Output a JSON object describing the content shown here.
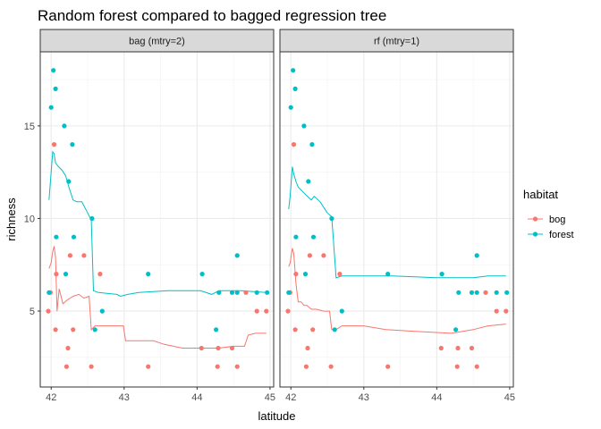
{
  "chart_data": {
    "type": "scatter",
    "title": "Random forest compared to bagged regression tree",
    "xlabel": "latitude",
    "ylabel": "richness",
    "xlim": [
      41.85,
      45.05
    ],
    "ylim": [
      0.9,
      19.0
    ],
    "x_ticks": [
      42,
      43,
      44,
      45
    ],
    "y_ticks": [
      5,
      10,
      15
    ],
    "grid": true,
    "facets": [
      "bag (mtry=2)",
      "rf (mtry=1)"
    ],
    "legend": {
      "title": "habitat",
      "position": "right",
      "entries": [
        {
          "label": "bog",
          "color": "#F8766D"
        },
        {
          "label": "forest",
          "color": "#00BFC4"
        }
      ]
    },
    "series": [
      {
        "name": "bog",
        "color": "#F8766D",
        "points": [
          [
            41.96,
            5
          ],
          [
            41.99,
            6
          ],
          [
            42.04,
            14
          ],
          [
            42.06,
            4
          ],
          [
            42.07,
            7
          ],
          [
            42.21,
            2
          ],
          [
            42.23,
            3
          ],
          [
            42.26,
            8
          ],
          [
            42.3,
            4
          ],
          [
            42.45,
            8
          ],
          [
            42.55,
            2
          ],
          [
            42.67,
            7
          ],
          [
            43.33,
            2
          ],
          [
            44.06,
            3
          ],
          [
            44.28,
            2
          ],
          [
            44.29,
            3
          ],
          [
            44.48,
            3
          ],
          [
            44.55,
            2
          ],
          [
            44.67,
            6
          ],
          [
            44.82,
            5
          ],
          [
            44.95,
            5
          ]
        ],
        "fit": {
          "bag (mtry=2)": [
            [
              41.97,
              7.3
            ],
            [
              42.0,
              7.6
            ],
            [
              42.02,
              8.2
            ],
            [
              42.04,
              8.5
            ],
            [
              42.06,
              7.9
            ],
            [
              42.08,
              5.0
            ],
            [
              42.11,
              6.2
            ],
            [
              42.16,
              5.4
            ],
            [
              42.22,
              5.6
            ],
            [
              42.3,
              5.8
            ],
            [
              42.38,
              5.9
            ],
            [
              42.45,
              5.7
            ],
            [
              42.52,
              5.8
            ],
            [
              42.55,
              4.0
            ],
            [
              42.6,
              4.2
            ],
            [
              42.8,
              4.2
            ],
            [
              42.99,
              4.2
            ],
            [
              43.02,
              3.4
            ],
            [
              43.4,
              3.4
            ],
            [
              43.55,
              3.2
            ],
            [
              43.8,
              3.0
            ],
            [
              44.3,
              3.0
            ],
            [
              44.5,
              3.1
            ],
            [
              44.65,
              3.1
            ],
            [
              44.7,
              3.7
            ],
            [
              44.8,
              3.8
            ],
            [
              44.95,
              3.8
            ]
          ],
          "rf (mtry=1)": [
            [
              41.97,
              7.4
            ],
            [
              41.99,
              7.6
            ],
            [
              42.02,
              8.4
            ],
            [
              42.04,
              8.1
            ],
            [
              42.07,
              6.5
            ],
            [
              42.1,
              5.5
            ],
            [
              42.14,
              5.5
            ],
            [
              42.18,
              5.3
            ],
            [
              42.22,
              5.3
            ],
            [
              42.28,
              5.1
            ],
            [
              42.35,
              5.1
            ],
            [
              42.45,
              5.0
            ],
            [
              42.53,
              5.0
            ],
            [
              42.56,
              4.0
            ],
            [
              42.62,
              4.0
            ],
            [
              42.7,
              4.2
            ],
            [
              43.0,
              4.2
            ],
            [
              43.3,
              4.0
            ],
            [
              43.7,
              3.9
            ],
            [
              44.2,
              3.8
            ],
            [
              44.5,
              4.0
            ],
            [
              44.7,
              4.2
            ],
            [
              44.95,
              4.3
            ]
          ]
        }
      },
      {
        "name": "forest",
        "color": "#00BFC4",
        "points": [
          [
            41.97,
            6
          ],
          [
            42.0,
            16
          ],
          [
            42.03,
            18
          ],
          [
            42.06,
            17
          ],
          [
            42.07,
            9
          ],
          [
            42.18,
            15
          ],
          [
            42.2,
            7
          ],
          [
            42.24,
            12
          ],
          [
            42.29,
            14
          ],
          [
            42.31,
            9
          ],
          [
            42.56,
            10
          ],
          [
            42.6,
            4
          ],
          [
            42.7,
            5
          ],
          [
            43.33,
            7
          ],
          [
            44.07,
            7
          ],
          [
            44.26,
            4
          ],
          [
            44.3,
            6
          ],
          [
            44.48,
            6
          ],
          [
            44.55,
            8
          ],
          [
            44.55,
            6
          ],
          [
            44.82,
            6
          ],
          [
            44.96,
            6
          ]
        ],
        "fit": {
          "bag (mtry=2)": [
            [
              41.97,
              11.0
            ],
            [
              42.0,
              12.5
            ],
            [
              42.02,
              13.6
            ],
            [
              42.04,
              13.5
            ],
            [
              42.06,
              13.0
            ],
            [
              42.1,
              12.8
            ],
            [
              42.15,
              12.6
            ],
            [
              42.2,
              12.3
            ],
            [
              42.25,
              11.6
            ],
            [
              42.3,
              11.0
            ],
            [
              42.35,
              10.9
            ],
            [
              42.42,
              10.9
            ],
            [
              42.5,
              10.3
            ],
            [
              42.55,
              9.9
            ],
            [
              42.58,
              6.1
            ],
            [
              42.65,
              6.0
            ],
            [
              42.9,
              5.9
            ],
            [
              42.95,
              5.8
            ],
            [
              43.05,
              5.9
            ],
            [
              43.2,
              6.0
            ],
            [
              43.6,
              6.1
            ],
            [
              44.05,
              6.1
            ],
            [
              44.2,
              5.9
            ],
            [
              44.3,
              6.1
            ],
            [
              44.6,
              6.1
            ],
            [
              44.95,
              6.0
            ]
          ],
          "rf (mtry=1)": [
            [
              41.97,
              10.5
            ],
            [
              41.99,
              11.2
            ],
            [
              42.02,
              12.8
            ],
            [
              42.04,
              12.4
            ],
            [
              42.07,
              12.0
            ],
            [
              42.1,
              11.7
            ],
            [
              42.2,
              11.3
            ],
            [
              42.28,
              11.0
            ],
            [
              42.32,
              11.2
            ],
            [
              42.4,
              10.9
            ],
            [
              42.5,
              10.3
            ],
            [
              42.56,
              10.1
            ],
            [
              42.62,
              6.8
            ],
            [
              42.7,
              6.9
            ],
            [
              43.0,
              6.9
            ],
            [
              43.4,
              6.9
            ],
            [
              44.0,
              6.8
            ],
            [
              44.5,
              6.8
            ],
            [
              44.7,
              6.9
            ],
            [
              44.95,
              6.9
            ]
          ]
        }
      }
    ]
  }
}
